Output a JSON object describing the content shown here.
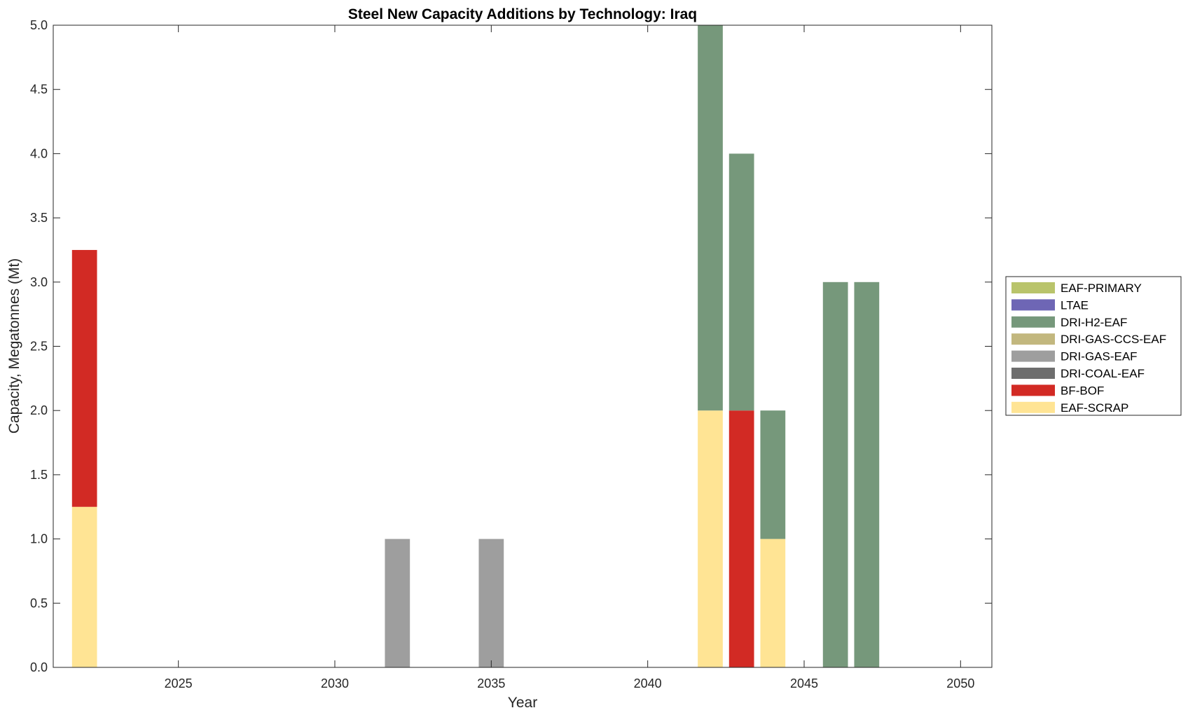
{
  "chart_data": {
    "type": "bar",
    "stacked": true,
    "title": "Steel New Capacity Additions by Technology: Iraq",
    "xlabel": "Year",
    "ylabel": "Capacity, Megatonnes (Mt)",
    "xlim": [
      2021,
      2051
    ],
    "ylim": [
      0,
      5
    ],
    "xticks": [
      2025,
      2030,
      2035,
      2040,
      2045,
      2050
    ],
    "yticks": [
      0.0,
      0.5,
      1.0,
      1.5,
      2.0,
      2.5,
      3.0,
      3.5,
      4.0,
      4.5,
      5.0
    ],
    "xtick_labels": [
      "2025",
      "2030",
      "2035",
      "2040",
      "2045",
      "2050"
    ],
    "ytick_labels": [
      "0.0",
      "0.5",
      "1.0",
      "1.5",
      "2.0",
      "2.5",
      "3.0",
      "3.5",
      "4.0",
      "4.5",
      "5.0"
    ],
    "grid": false,
    "legend_position": "right",
    "x": [
      2022,
      2032,
      2035,
      2042,
      2043,
      2044,
      2046,
      2047
    ],
    "series": [
      {
        "name": "EAF-SCRAP",
        "color": "#FFE494",
        "values": [
          1.25,
          0,
          0,
          2,
          0,
          1,
          0,
          0
        ]
      },
      {
        "name": "BF-BOF",
        "color": "#D22A24",
        "values": [
          2,
          0,
          0,
          0,
          2,
          0,
          0,
          0
        ]
      },
      {
        "name": "DRI-COAL-EAF",
        "color": "#6E6E6E",
        "values": [
          0,
          0,
          0,
          0,
          0,
          0,
          0,
          0
        ]
      },
      {
        "name": "DRI-GAS-EAF",
        "color": "#9E9E9E",
        "values": [
          0,
          1,
          1,
          0,
          0,
          0,
          0,
          0
        ]
      },
      {
        "name": "DRI-GAS-CCS-EAF",
        "color": "#C2B77E",
        "values": [
          0,
          0,
          0,
          0,
          0,
          0,
          0,
          0
        ]
      },
      {
        "name": "DRI-H2-EAF",
        "color": "#76987B",
        "values": [
          0,
          0,
          0,
          3,
          2,
          1,
          3,
          3
        ]
      },
      {
        "name": "LTAE",
        "color": "#6E66B5",
        "values": [
          0,
          0,
          0,
          0,
          0,
          0,
          0,
          0
        ]
      },
      {
        "name": "EAF-PRIMARY",
        "color": "#B9C46B",
        "values": [
          0,
          0,
          0,
          0,
          0,
          0,
          0,
          0
        ]
      }
    ]
  }
}
